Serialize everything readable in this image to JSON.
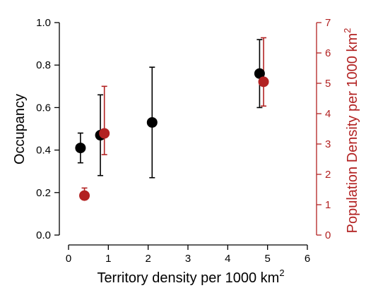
{
  "chart_data": {
    "type": "scatter",
    "xlabel": "Territory density per 1000 km",
    "xlabel_superscript": "2",
    "ylabel_left": "Occupancy",
    "ylabel_right": "Population Density per 1000 km",
    "ylabel_right_superscript": "2",
    "xlim": [
      0,
      6
    ],
    "ylim_left": [
      0,
      1
    ],
    "ylim_right": [
      0,
      7
    ],
    "xticks": [
      "0",
      "1",
      "2",
      "3",
      "4",
      "5",
      "6"
    ],
    "yticks_left": [
      "0.0",
      "0.2",
      "0.4",
      "0.6",
      "0.8",
      "1.0"
    ],
    "yticks_right": [
      "0",
      "1",
      "2",
      "3",
      "4",
      "5",
      "6",
      "7"
    ],
    "grid": false,
    "series": [
      {
        "axis": "left",
        "color": "#000000",
        "points": [
          {
            "x": 0.3,
            "y": 0.41,
            "low": 0.34,
            "high": 0.48
          },
          {
            "x": 0.8,
            "y": 0.47,
            "low": 0.28,
            "high": 0.66
          },
          {
            "x": 2.1,
            "y": 0.53,
            "low": 0.27,
            "high": 0.79
          },
          {
            "x": 4.8,
            "y": 0.76,
            "low": 0.6,
            "high": 0.92
          }
        ]
      },
      {
        "axis": "right",
        "color": "#b22222",
        "points": [
          {
            "x": 0.4,
            "y": 1.3,
            "low": 1.3,
            "high": 1.55
          },
          {
            "x": 0.9,
            "y": 3.35,
            "low": 2.65,
            "high": 4.9
          },
          {
            "x": 4.9,
            "y": 5.05,
            "low": 4.25,
            "high": 6.5
          }
        ]
      }
    ]
  }
}
